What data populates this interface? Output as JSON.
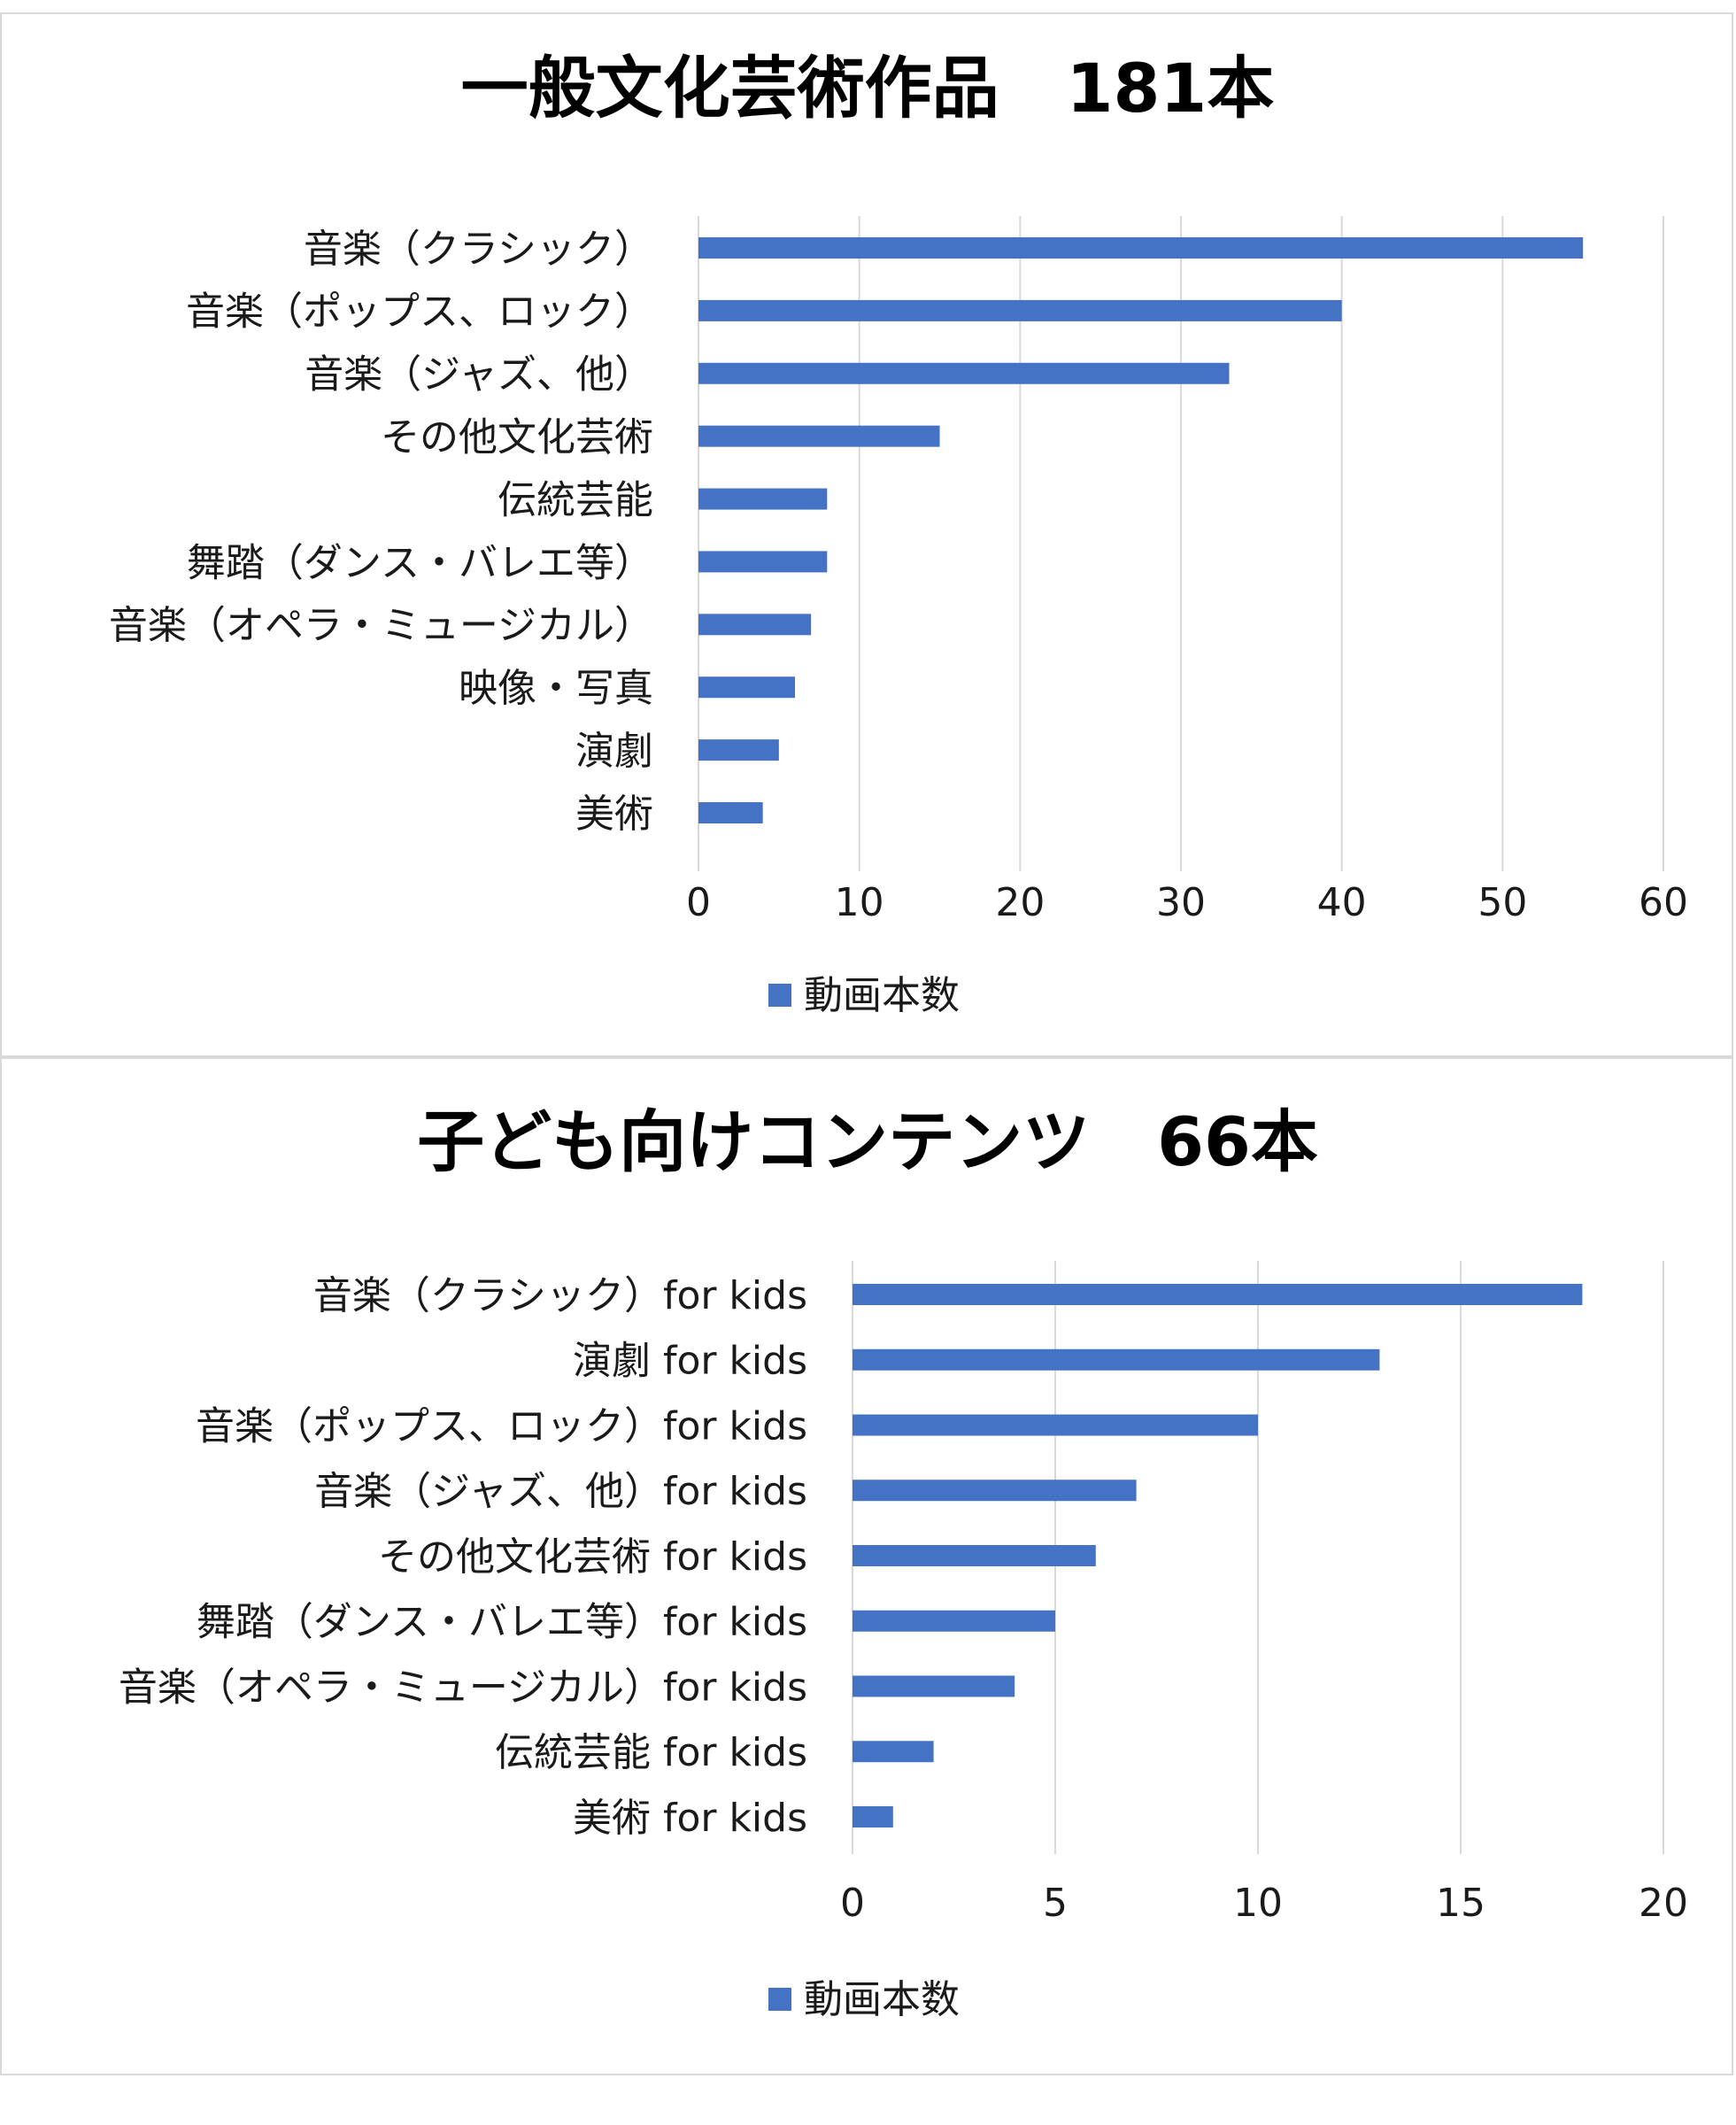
{
  "charts": {
    "general": {
      "chart_data": {
        "type": "bar",
        "orientation": "horizontal",
        "title": "一般文化芸術作品　181本",
        "categories": [
          "音楽（クラシック）",
          "音楽（ポップス、ロック）",
          "音楽（ジャズ、他）",
          "その他文化芸術",
          "伝統芸能",
          "舞踏（ダンス・バレエ等）",
          "音楽（オペラ・ミュージカル）",
          "映像・写真",
          "演劇",
          "美術"
        ],
        "series": [
          {
            "name": "動画本数",
            "values": [
              55,
              40,
              33,
              15,
              8,
              8,
              7,
              6,
              5,
              4
            ],
            "color": "#4472C4"
          }
        ],
        "xlim": [
          0,
          60
        ],
        "xticks": [
          0,
          10,
          20,
          30,
          40,
          50,
          60
        ],
        "grid": true,
        "legend": "bottom"
      }
    },
    "kids": {
      "chart_data": {
        "type": "bar",
        "orientation": "horizontal",
        "title": "子ども向けコンテンツ　66本",
        "categories": [
          "音楽（クラシック）for kids",
          "演劇 for kids",
          "音楽（ポップス、ロック）for kids",
          "音楽（ジャズ、他）for kids",
          "その他文化芸術 for kids",
          "舞踏（ダンス・バレエ等）for kids",
          "音楽（オペラ・ミュージカル）for kids",
          "伝統芸能 for kids",
          "美術 for kids"
        ],
        "series": [
          {
            "name": "動画本数",
            "values": [
              18,
              13,
              10,
              7,
              6,
              5,
              4,
              2,
              1
            ],
            "color": "#4472C4"
          }
        ],
        "xlim": [
          0,
          20
        ],
        "xticks": [
          0,
          5,
          10,
          15,
          20
        ],
        "grid": true,
        "legend": "bottom"
      }
    }
  }
}
